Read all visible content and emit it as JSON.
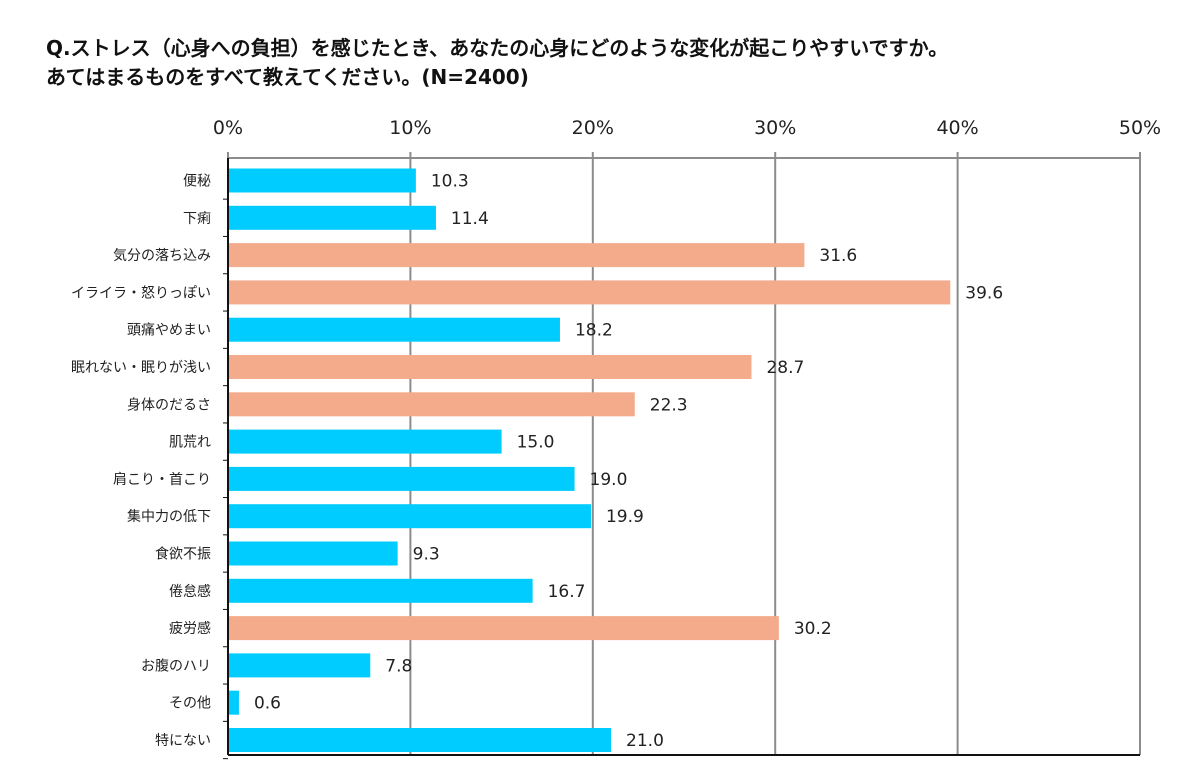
{
  "title_line1": "Q.ストレス（心身への負担）を感じたとき、あなたの心身にどのような変化が起こりやすいですか。",
  "title_line2": "あてはまるものをすべて教えてください。(N=2400)",
  "colors": {
    "blue": "#00CCFF",
    "salmon": "#F4AB8C",
    "grid": "#8C8C8C",
    "axis": "#111111"
  },
  "chart_data": {
    "type": "bar",
    "orientation": "horizontal",
    "title": "Q.ストレス（心身への負担）を感じたとき、あなたの心身にどのような変化が起こりやすいですか。あてはまるものをすべて教えてください。(N=2400)",
    "xlim": [
      0,
      50
    ],
    "x_ticks": [
      "0%",
      "10%",
      "20%",
      "30%",
      "40%",
      "50%"
    ],
    "x_tick_values": [
      0,
      10,
      20,
      30,
      40,
      50
    ],
    "x_axis_position": "top",
    "grid": true,
    "legend": "none",
    "categories": [
      "便秘",
      "下痢",
      "気分の落ち込み",
      "イライラ・怒りっぽい",
      "頭痛やめまい",
      "眠れない・眠りが浅い",
      "身体のだるさ",
      "肌荒れ",
      "肩こり・首こり",
      "集中力の低下",
      "食欲不振",
      "倦怠感",
      "疲労感",
      "お腹のハリ",
      "その他",
      "特にない"
    ],
    "values": [
      10.3,
      11.4,
      31.6,
      39.6,
      18.2,
      28.7,
      22.3,
      15.0,
      19.0,
      19.9,
      9.3,
      16.7,
      30.2,
      7.8,
      0.6,
      21.0
    ],
    "value_labels": [
      "10.3",
      "11.4",
      "31.6",
      "39.6",
      "18.2",
      "28.7",
      "22.3",
      "15.0",
      "19.0",
      "19.9",
      "9.3",
      "16.7",
      "30.2",
      "7.8",
      "0.6",
      "21.0"
    ],
    "bar_colors": [
      "blue",
      "blue",
      "salmon",
      "salmon",
      "blue",
      "salmon",
      "salmon",
      "blue",
      "blue",
      "blue",
      "blue",
      "blue",
      "salmon",
      "blue",
      "blue",
      "blue"
    ]
  }
}
